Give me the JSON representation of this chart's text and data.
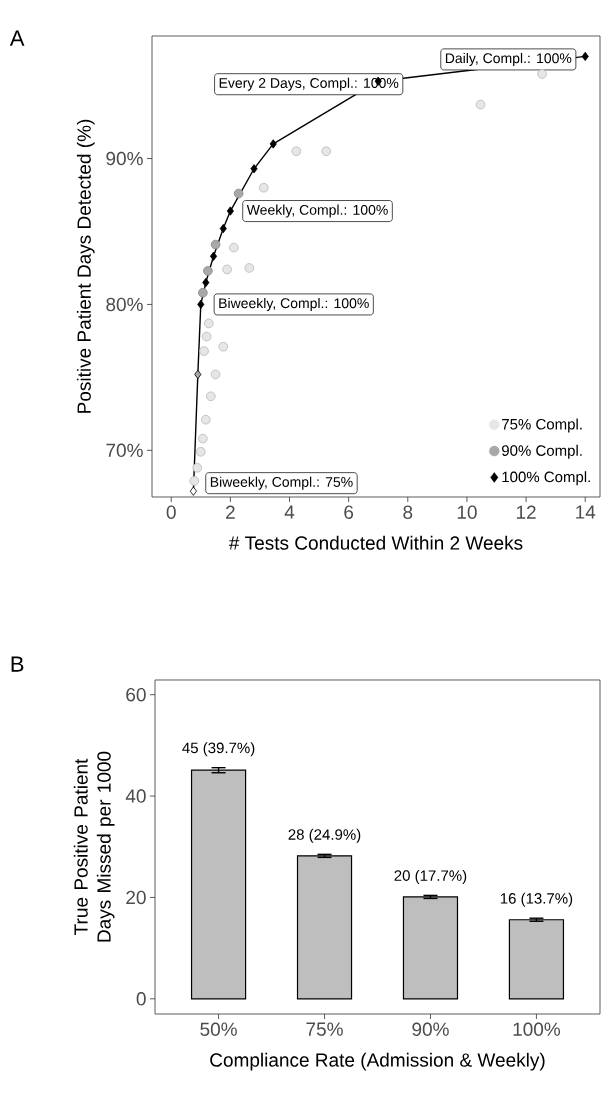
{
  "chart_data": [
    {
      "type": "scatter",
      "title": "A",
      "xlabel": "# Tests Conducted Within 2 Weeks",
      "ylabel": "Positive Patient Days Detected (%)",
      "xlim": [
        -0.65,
        14.5
      ],
      "ylim": [
        66.8,
        98.4
      ],
      "xticks": [
        0,
        2,
        4,
        6,
        8,
        10,
        12,
        14
      ],
      "yticks": [
        {
          "value": 70,
          "label": "70%"
        },
        {
          "value": 80,
          "label": "80%"
        },
        {
          "value": 90,
          "label": "90%"
        }
      ],
      "legend": "bottom right",
      "series": [
        {
          "name": "75% Compl.",
          "type": "scatter",
          "marker": "circle",
          "color": "#e6e6e6",
          "x": [
            0.78,
            0.88,
            1.0,
            1.07,
            1.17,
            1.34,
            1.5,
            1.11,
            1.76,
            1.2,
            1.27,
            1.89,
            2.64,
            2.12,
            3.13,
            4.23,
            5.24,
            10.46,
            12.54
          ],
          "values": [
            67.9,
            68.8,
            69.9,
            70.8,
            72.1,
            73.7,
            75.2,
            76.8,
            77.1,
            77.8,
            78.7,
            82.4,
            82.5,
            83.9,
            88.0,
            90.5,
            90.5,
            93.7,
            95.8
          ]
        },
        {
          "name": "90% Compl.",
          "type": "scatter",
          "marker": "circle",
          "color": "#a8a8a8",
          "x": [
            1.07,
            1.24,
            1.5,
            2.28
          ],
          "values": [
            80.8,
            82.3,
            84.1,
            87.6
          ]
        },
        {
          "name": "100% Compl.",
          "type": "line",
          "marker": "diamond",
          "color": "#000000",
          "colors": [
            "#ffffff",
            "#a8a8a8",
            "#000000",
            "#000000",
            "#000000",
            "#000000",
            "#000000",
            "#000000",
            "#000000",
            "#000000",
            "#000000"
          ],
          "x": [
            0.75,
            0.9,
            1.0,
            1.17,
            1.43,
            1.76,
            2.0,
            2.8,
            3.45,
            7.0,
            14.0
          ],
          "values": [
            67.2,
            75.2,
            80.0,
            81.5,
            83.3,
            85.2,
            86.4,
            89.3,
            91.0,
            95.3,
            97.0
          ]
        }
      ],
      "annotations": [
        {
          "text": "Daily, Compl.: 100%",
          "x": 14.0,
          "y": 97.0
        },
        {
          "text": "Every 2 Days, Compl.: 100%",
          "x": 7.0,
          "y": 95.3
        },
        {
          "text": "Weekly, Compl.: 100%",
          "x": 2.0,
          "y": 86.4
        },
        {
          "text": "Biweekly, Compl.: 100%",
          "x": 1.0,
          "y": 80.0
        },
        {
          "text": "Biweekly, Compl.: 75%",
          "x": 0.75,
          "y": 67.2
        }
      ]
    },
    {
      "type": "bar",
      "title": "B",
      "xlabel": "Compliance Rate (Admission & Weekly)",
      "ylabel": "True Positive Patient Days Missed per 1000",
      "categories": [
        "50%",
        "75%",
        "90%",
        "100%"
      ],
      "values": [
        45.1,
        28.2,
        20.1,
        15.6
      ],
      "errors": [
        0.5,
        0.3,
        0.3,
        0.3
      ],
      "value_labels": [
        "45 (39.7%)",
        "28 (24.9%)",
        "20 (17.7%)",
        "16 (13.7%)"
      ],
      "color": "#bebebe",
      "ylim": [
        -3,
        62.9
      ],
      "yticks": [
        0,
        20,
        40,
        60
      ]
    }
  ]
}
